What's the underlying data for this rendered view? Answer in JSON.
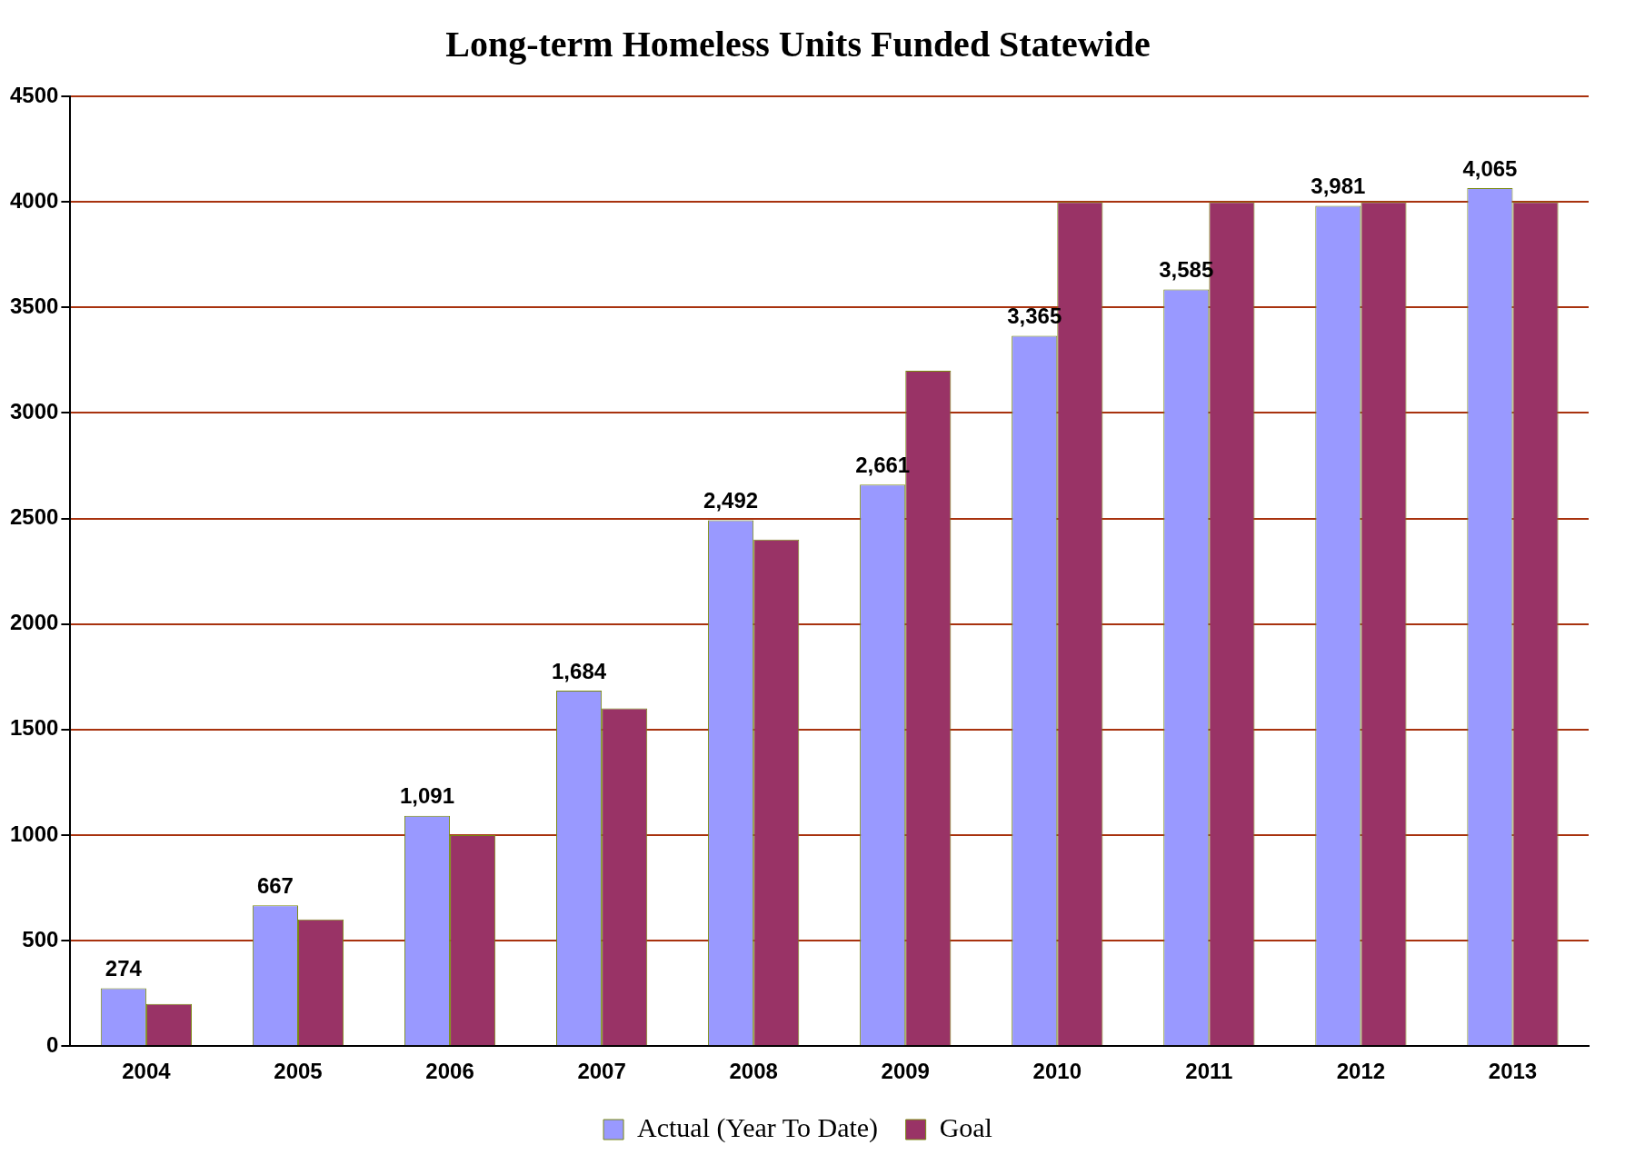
{
  "chart_data": {
    "type": "bar",
    "title": "Long-term Homeless Units Funded Statewide",
    "categories": [
      "2004",
      "2005",
      "2006",
      "2007",
      "2008",
      "2009",
      "2010",
      "2011",
      "2012",
      "2013"
    ],
    "series": [
      {
        "name": "Actual (Year To Date)",
        "color": "#9999ff",
        "values": [
          274,
          667,
          1091,
          1684,
          2492,
          2661,
          3365,
          3585,
          3981,
          4065
        ],
        "value_labels": [
          "274",
          "667",
          "1,091",
          "1,684",
          "2,492",
          "2,661",
          "3,365",
          "3,585",
          "3,981",
          "4,065"
        ]
      },
      {
        "name": "Goal",
        "color": "#993366",
        "values": [
          200,
          600,
          1000,
          1600,
          2400,
          3200,
          4000,
          4000,
          4000,
          4000
        ]
      }
    ],
    "ylim": [
      0,
      4500
    ],
    "yticks": [
      0,
      500,
      1000,
      1500,
      2000,
      2500,
      3000,
      3500,
      4000,
      4500
    ],
    "grid": "y",
    "legend": "bottom"
  }
}
